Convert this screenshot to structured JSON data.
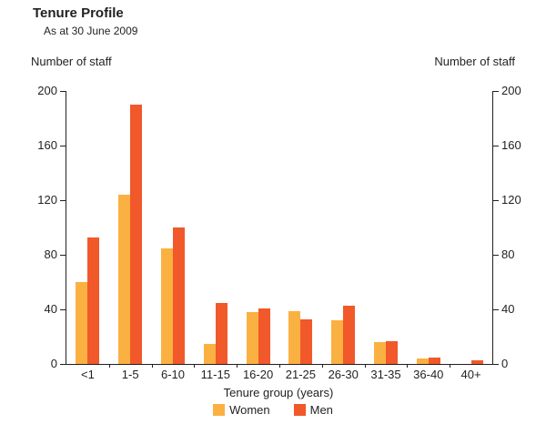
{
  "header": {
    "title": "Tenure Profile",
    "subtitle": "As at 30 June 2009"
  },
  "axes": {
    "y_left_label": "Number of staff",
    "y_right_label": "Number of staff",
    "x_label": "Tenure group (years)"
  },
  "legend": {
    "items": [
      {
        "label": "Women",
        "color": "#FBB042"
      },
      {
        "label": "Men",
        "color": "#F1582A"
      }
    ],
    "position": "bottom"
  },
  "chart_data": {
    "type": "bar",
    "title": "Tenure Profile",
    "subtitle": "As at 30 June 2009",
    "xlabel": "Tenure group (years)",
    "ylabel": "Number of staff",
    "categories": [
      "<1",
      "1-5",
      "6-10",
      "11-15",
      "16-20",
      "21-25",
      "26-30",
      "31-35",
      "36-40",
      "40+"
    ],
    "series": [
      {
        "name": "Women",
        "color": "#FBB042",
        "values": [
          60,
          124,
          85,
          15,
          38,
          39,
          32,
          16,
          4,
          0
        ]
      },
      {
        "name": "Men",
        "color": "#F1582A",
        "values": [
          93,
          190,
          100,
          45,
          41,
          33,
          43,
          17,
          5,
          3
        ]
      }
    ],
    "ylim": [
      0,
      200
    ],
    "yticks": [
      0,
      40,
      80,
      120,
      160,
      200
    ],
    "grid": false,
    "legend_position": "bottom"
  }
}
